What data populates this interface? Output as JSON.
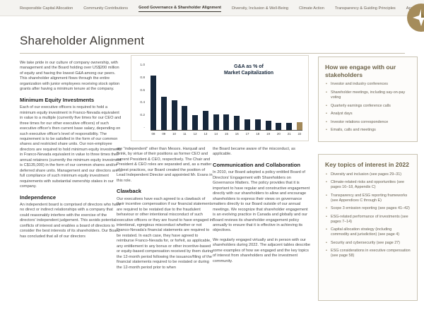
{
  "nav": {
    "items": [
      {
        "label": "Responsible Capital Allocation",
        "active": false
      },
      {
        "label": "Community Contributions",
        "active": false
      },
      {
        "label": "Good Governance & Shareholder Alignment",
        "active": true
      },
      {
        "label": "Diversity, Inclusion & Well-Being",
        "active": false
      },
      {
        "label": "Climate Action",
        "active": false
      },
      {
        "label": "Transparency & Guiding Principles",
        "active": false
      },
      {
        "label": "Appendices",
        "active": false
      }
    ],
    "page_number": "26"
  },
  "page_title": "Shareholder Alignment",
  "columns": {
    "col1": {
      "intro": "We take pride in our culture of company ownership, with management and the Board holding over US$200 million of equity and having the lowest G&A among our peers. This shareholder alignment flows through the entire organization with junior employees receiving stock option grants after having a minimum tenure at the company.",
      "h1": "Minimum Equity Investments",
      "p1": "Each of our executive officers is required to hold a minimum equity investment in Franco-Nevada equivalent in value to a multiple (currently five times for our CEO and three times for our other executive officers) of such executive officer's then current base salary, depending on such executive officer's level of responsibility. The requirement is to be satisfied in the form of our common shares and restricted share units. Our non-employee directors are required to hold minimum equity investments in Franco-Nevada equivalent in value to three times their annual retainers (currently the minimum equity investment is C$135,000) in the form of our common shares and/or deferred share units. Management and our directors are in full compliance of such minimum equity investment requirements with substantial ownership stakes in our company.",
      "h2": "Independence",
      "p2": "An independent board is comprised of directors who have no direct or indirect relationships with a company that could reasonably interfere with the exercise of the directors' independent judgement. This avoids potential conflicts of interest and enables a board of directors to consider the best interests of its shareholders. Our Board has concluded that all of our directors"
    },
    "col2": {
      "p1": "are “independent” other than Messrs. Harquail and Brink, by virtue of their positions as former CEO and current President & CEO, respectively. The Chair and President & CEO roles are separated and, as a matter of best practices, our Board created the position of Lead Independent Director and appointed Mr. Evans in this role.",
      "h1": "Clawback",
      "p2": "Our executives have each agreed to a clawback of their incentive compensation if our financial statements are required to be restated due to the fraudulent behaviour or other intentional misconduct of such executive officers or they are found to have engaged in intentional, egregious misconduct whether or not Franco-Nevada's financial statements are required to be restated. In each case, they have agreed to reimburse Franco-Nevada for, or forfeit, as applicable, any entitlement to any bonus or other incentive-based or equity-based compensation received by them during the 12-month period following the issuance/filing of the financial statements required to be restated or during the 12-month period prior to when"
    },
    "col3": {
      "p1": "the Board became aware of the misconduct, as applicable.",
      "h1": "Communication and Collaboration",
      "p2": "In 2010, our Board adopted a policy entitled Board of Directors' Engagement with Shareholders on Governance Matters. The policy provides that it is important to have regular and constructive engagement directly with our shareholders to allow and encourage shareholders to express their views on governance matters directly to our Board outside of our annual meetings. We recognize that shareholder engagement is an evolving practice in Canada and globally and our Board reviews its shareholder engagement policy annually to ensure that it is effective in achieving its objectives.",
      "p3": "We regularly engaged virtually and in person with our shareholders during 2022. The adjacent tables describe some examples of how we engaged and the key topics of interest from shareholders and the investment community."
    }
  },
  "chart_data": {
    "type": "bar",
    "title_line1": "G&A as % of",
    "title_line2": "Market Capitalization",
    "categories": [
      "08",
      "09",
      "10",
      "11",
      "12",
      "13",
      "14",
      "15",
      "16",
      "17",
      "18",
      "19",
      "20",
      "21",
      "22"
    ],
    "values": [
      0.86,
      0.52,
      0.47,
      0.38,
      0.23,
      0.3,
      0.24,
      0.24,
      0.22,
      0.17,
      0.17,
      0.14,
      0.11,
      0.11,
      0.12
    ],
    "ylim": [
      0,
      1.0
    ],
    "yticks": [
      "1.0",
      "0.8",
      "0.6",
      "0.4",
      "0.2",
      "-"
    ],
    "bar_color": "#16273b",
    "highlight_color": "#a3895a",
    "highlight_index": 14,
    "grid": false,
    "legend": "none"
  },
  "sidebar": {
    "engage_box": {
      "title": "How we engage with our stakeholders",
      "items": [
        "Investor and industry conferences",
        "Shareholder meetings, including say-on-pay voting",
        "Quarterly earnings conference calls",
        "Analyst days",
        "Investor relations correspondence",
        "Emails, calls and meetings"
      ]
    },
    "topics_box": {
      "title": "Key topics of interest in 2022",
      "items": [
        "Diversity and inclusion (see pages 29–31)",
        "Climate-related risks and opportunities (see pages 16–18, Appendix C)",
        "Transparency and ESG reporting frameworks (see Appendices C through E)",
        "Scope 3 emission reporting (see pages 41–42)",
        "ESG-related performance of investments (see pages 7–14)",
        "Capital allocation strategy (including commodity and jurisdiction) (see page 4)",
        "Security and cybersecurity (see page 27)",
        "ESG considerations in executive compensation (see page 58)"
      ]
    }
  }
}
